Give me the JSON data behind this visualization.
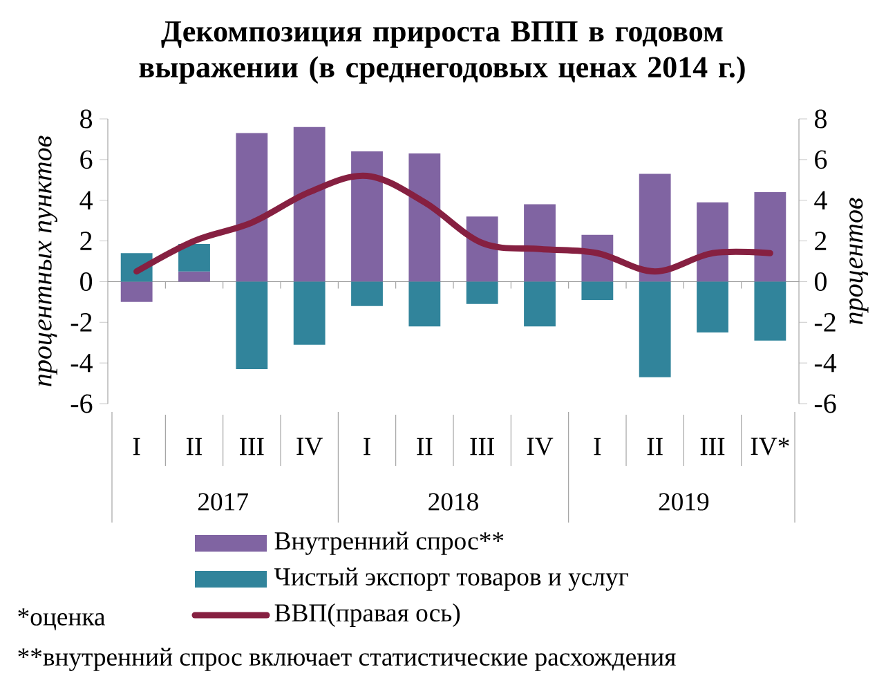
{
  "chart_data": {
    "type": "bar",
    "title": "Декомпозиция прироста ВПП в годовом выражении (в среднегодовых ценах 2014 г.)",
    "ylabel": "процентных пунктов",
    "y2label": "процентов",
    "categories": [
      "I",
      "II",
      "III",
      "IV",
      "I",
      "II",
      "III",
      "IV",
      "I",
      "II",
      "III",
      "IV*"
    ],
    "stacked": true,
    "legend": "bottom",
    "ylim": [
      -6,
      8
    ],
    "yticks": [
      -6,
      -4,
      -2,
      0,
      2,
      4,
      6,
      8
    ],
    "y2lim": [
      -6,
      8
    ],
    "y2ticks": [
      -6,
      -4,
      -2,
      0,
      2,
      4,
      6,
      8
    ],
    "series": [
      {
        "name": "Внутренний спрос**",
        "color": "#8064a2",
        "values": [
          -1.0,
          0.5,
          7.3,
          7.6,
          6.4,
          6.3,
          3.2,
          3.8,
          2.3,
          5.3,
          3.9,
          4.4
        ]
      },
      {
        "name": "Чистый экспорт товаров и услуг",
        "color": "#31849b",
        "values": [
          1.4,
          1.35,
          -4.3,
          -3.1,
          -1.2,
          -2.2,
          -1.1,
          -2.2,
          -0.9,
          -4.7,
          -2.5,
          -2.9
        ]
      },
      {
        "name": "ВВП(правая ось)",
        "type": "line",
        "axis": "y2",
        "color": "#862041",
        "values": [
          0.5,
          2.0,
          2.9,
          4.4,
          5.2,
          3.9,
          1.9,
          1.6,
          1.4,
          0.5,
          1.4,
          1.4
        ]
      }
    ],
    "annotations": [
      "2017",
      "2018",
      "2019",
      "*оценка",
      "**внутренний спрос включает статистические расхождения"
    ]
  }
}
